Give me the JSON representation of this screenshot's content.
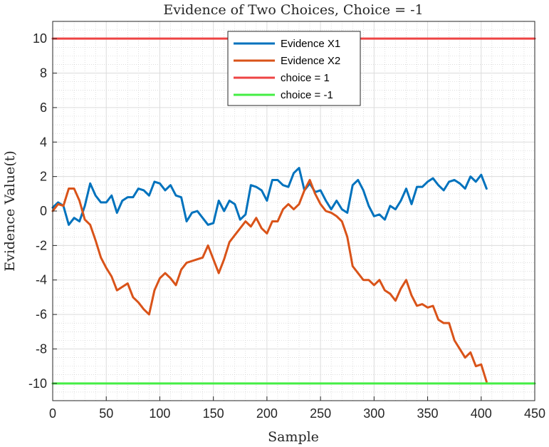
{
  "chart_data": {
    "type": "line",
    "title": "Evidence of Two Choices, Choice = -1",
    "xlabel": "Sample",
    "ylabel": "Evidence Value(t)",
    "xlim": [
      0,
      450
    ],
    "ylim": [
      -11,
      11
    ],
    "xticks": [
      0,
      50,
      100,
      150,
      200,
      250,
      300,
      350,
      400,
      450
    ],
    "yticks": [
      -10,
      -8,
      -6,
      -4,
      -2,
      0,
      2,
      4,
      6,
      8,
      10
    ],
    "grid": true,
    "minor_grid": true,
    "legend_position": "top-center",
    "series": [
      {
        "name": "Evidence X1",
        "color": "#0072BD",
        "x": [
          0,
          5,
          10,
          15,
          20,
          25,
          30,
          35,
          40,
          45,
          50,
          55,
          60,
          65,
          70,
          75,
          80,
          85,
          90,
          95,
          100,
          105,
          110,
          115,
          120,
          125,
          130,
          135,
          140,
          145,
          150,
          155,
          160,
          165,
          170,
          175,
          180,
          185,
          190,
          195,
          200,
          205,
          210,
          215,
          220,
          225,
          230,
          235,
          240,
          245,
          250,
          255,
          260,
          265,
          270,
          275,
          280,
          285,
          290,
          295,
          300,
          305,
          310,
          315,
          320,
          325,
          330,
          335,
          340,
          345,
          350,
          355,
          360,
          365,
          370,
          375,
          380,
          385,
          390,
          395,
          400,
          405
        ],
        "y": [
          0.2,
          0.5,
          0.3,
          -0.8,
          -0.4,
          -0.6,
          0.3,
          1.6,
          0.9,
          0.5,
          0.5,
          0.9,
          -0.1,
          0.6,
          0.8,
          0.8,
          1.3,
          1.2,
          0.9,
          1.7,
          1.6,
          1.2,
          1.5,
          0.9,
          0.8,
          -0.6,
          -0.1,
          0.0,
          -0.4,
          -0.8,
          -0.7,
          0.6,
          0.0,
          0.6,
          0.4,
          -0.5,
          -0.2,
          1.5,
          1.4,
          1.2,
          0.6,
          1.8,
          1.8,
          1.5,
          1.4,
          2.2,
          2.5,
          1.2,
          1.6,
          1.1,
          1.2,
          0.6,
          0.1,
          0.6,
          0.1,
          -0.1,
          1.5,
          1.8,
          1.2,
          0.3,
          -0.3,
          -0.2,
          -0.5,
          0.3,
          0.1,
          0.6,
          1.3,
          0.4,
          1.4,
          1.4,
          1.7,
          1.9,
          1.5,
          1.2,
          1.7,
          1.8,
          1.6,
          1.3,
          2.0,
          1.7,
          2.1,
          1.3
        ]
      },
      {
        "name": "Evidence X2",
        "color": "#D95319",
        "x": [
          0,
          5,
          10,
          15,
          20,
          25,
          30,
          35,
          40,
          45,
          50,
          55,
          60,
          65,
          70,
          75,
          80,
          85,
          90,
          95,
          100,
          105,
          110,
          115,
          120,
          125,
          130,
          135,
          140,
          145,
          150,
          155,
          160,
          165,
          170,
          175,
          180,
          185,
          190,
          195,
          200,
          205,
          210,
          215,
          220,
          225,
          230,
          235,
          240,
          245,
          250,
          255,
          260,
          265,
          270,
          275,
          280,
          285,
          290,
          295,
          300,
          305,
          310,
          315,
          320,
          325,
          330,
          335,
          340,
          345,
          350,
          355,
          360,
          365,
          370,
          375,
          380,
          385,
          390,
          395,
          400,
          405
        ],
        "y": [
          0.0,
          0.4,
          0.3,
          1.3,
          1.3,
          0.6,
          -0.5,
          -0.8,
          -1.7,
          -2.7,
          -3.3,
          -3.8,
          -4.6,
          -4.4,
          -4.2,
          -5.0,
          -5.3,
          -5.7,
          -6.0,
          -4.6,
          -3.9,
          -3.6,
          -3.9,
          -4.3,
          -3.4,
          -3.0,
          -2.9,
          -2.8,
          -2.7,
          -2.0,
          -2.8,
          -3.6,
          -2.8,
          -1.8,
          -1.4,
          -1.0,
          -0.6,
          -0.9,
          -0.4,
          -1.0,
          -1.3,
          -0.6,
          -0.6,
          0.1,
          0.4,
          0.1,
          0.4,
          1.2,
          1.8,
          1.0,
          0.4,
          0.0,
          -0.1,
          -0.3,
          -0.6,
          -1.5,
          -3.2,
          -3.6,
          -4.0,
          -4.0,
          -4.3,
          -4.0,
          -4.6,
          -4.8,
          -5.2,
          -4.5,
          -4.0,
          -4.9,
          -5.5,
          -5.4,
          -5.6,
          -5.5,
          -6.3,
          -6.5,
          -6.5,
          -7.5,
          -8.0,
          -8.5,
          -8.2,
          -9.0,
          -8.9,
          -9.9
        ]
      },
      {
        "name": "choice = 1",
        "color": "#EE4444",
        "x": [
          0,
          450
        ],
        "y": [
          10,
          10
        ]
      },
      {
        "name": "choice = -1",
        "color": "#44EE44",
        "x": [
          0,
          450
        ],
        "y": [
          -10,
          -10
        ]
      }
    ]
  }
}
